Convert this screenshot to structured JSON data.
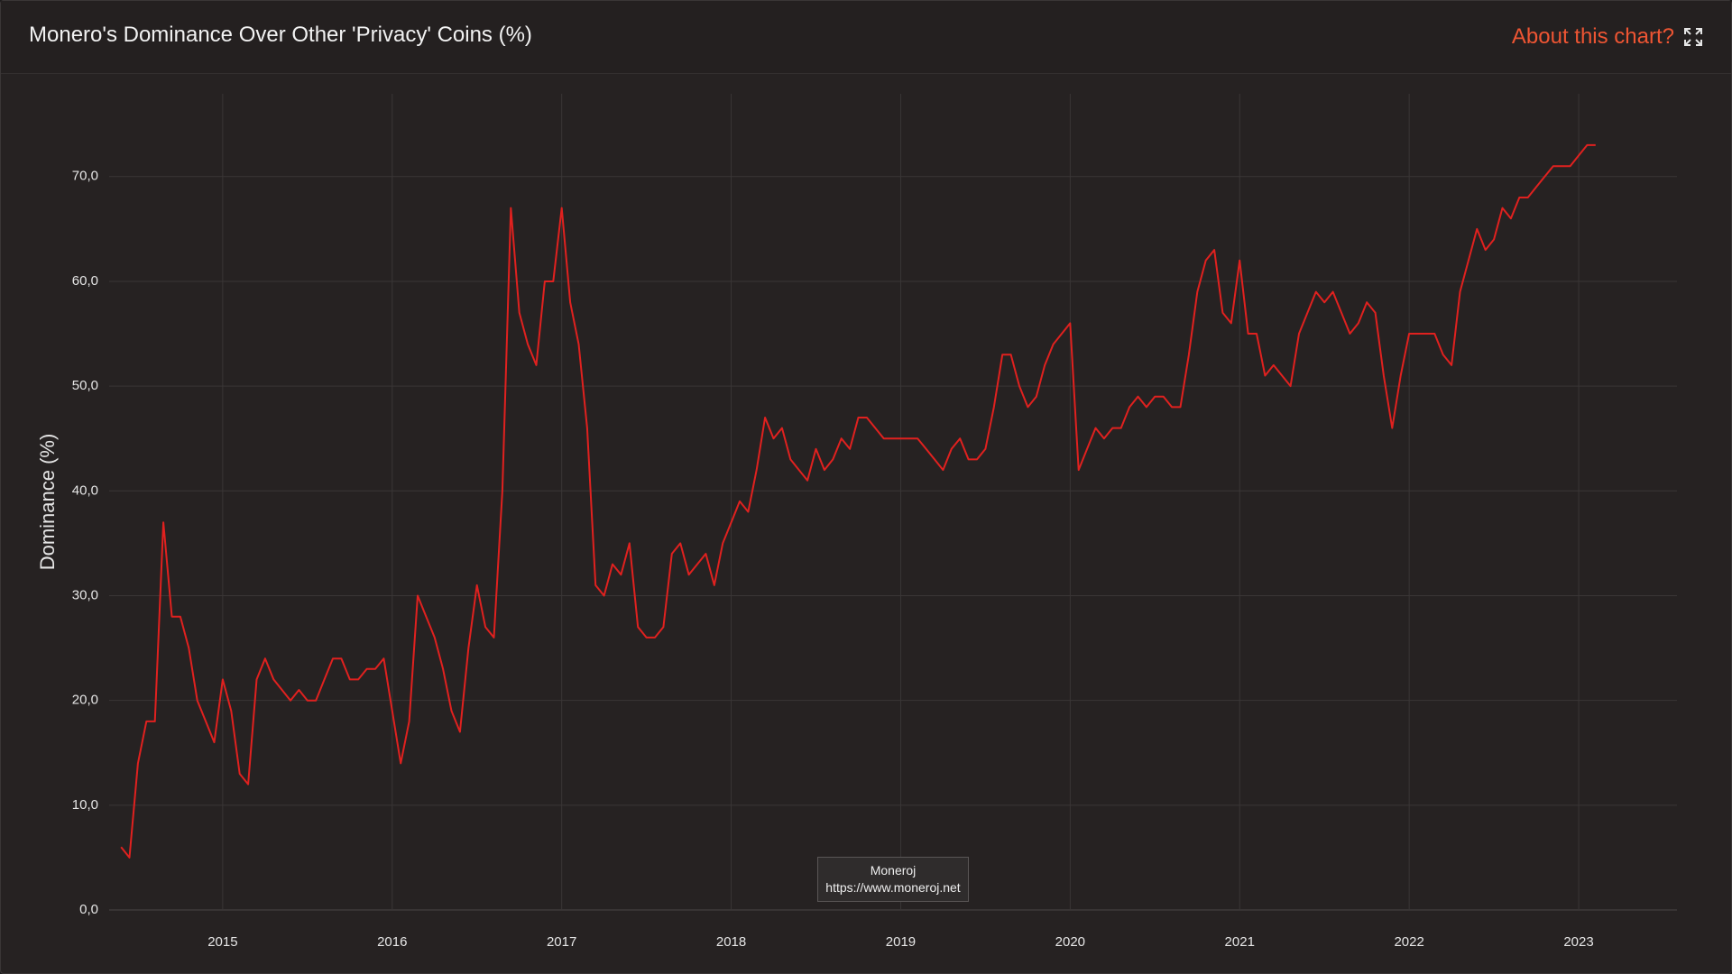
{
  "about": "About this chart?",
  "watermark": {
    "name": "Moneroj",
    "url": "https://www.moneroj.net"
  },
  "chart_data": {
    "type": "line",
    "title": "Monero's Dominance Over Other 'Privacy' Coins (%)",
    "y_label": "Dominance (%)",
    "color": "#e0211f",
    "grid": true,
    "xlim": [
      2014.33,
      2023.58
    ],
    "ylim": [
      0,
      77.9
    ],
    "xticks": [
      2015,
      2016,
      2017,
      2018,
      2019,
      2020,
      2021,
      2022,
      2023
    ],
    "yticks": [
      {
        "value": 0,
        "label": "0,0"
      },
      {
        "value": 10,
        "label": "10,0"
      },
      {
        "value": 20,
        "label": "20,0"
      },
      {
        "value": 30,
        "label": "30,0"
      },
      {
        "value": 40,
        "label": "40,0"
      },
      {
        "value": 50,
        "label": "50,0"
      },
      {
        "value": 60,
        "label": "60,0"
      },
      {
        "value": 70,
        "label": "70,0"
      }
    ],
    "x": [
      2014.4,
      2014.45,
      2014.5,
      2014.55,
      2014.6,
      2014.65,
      2014.7,
      2014.75,
      2014.8,
      2014.85,
      2014.9,
      2014.95,
      2015,
      2015.05,
      2015.1,
      2015.15,
      2015.2,
      2015.25,
      2015.3,
      2015.35,
      2015.4,
      2015.45,
      2015.5,
      2015.55,
      2015.6,
      2015.65,
      2015.7,
      2015.75,
      2015.8,
      2015.85,
      2015.9,
      2015.95,
      2016,
      2016.05,
      2016.1,
      2016.15,
      2016.2,
      2016.25,
      2016.3,
      2016.35,
      2016.4,
      2016.45,
      2016.5,
      2016.55,
      2016.6,
      2016.65,
      2016.7,
      2016.75,
      2016.8,
      2016.85,
      2016.9,
      2016.95,
      2017,
      2017.05,
      2017.1,
      2017.15,
      2017.2,
      2017.25,
      2017.3,
      2017.35,
      2017.4,
      2017.45,
      2017.5,
      2017.55,
      2017.6,
      2017.65,
      2017.7,
      2017.75,
      2017.8,
      2017.85,
      2017.9,
      2017.95,
      2018,
      2018.05,
      2018.1,
      2018.15,
      2018.2,
      2018.25,
      2018.3,
      2018.35,
      2018.4,
      2018.45,
      2018.5,
      2018.55,
      2018.6,
      2018.65,
      2018.7,
      2018.75,
      2018.8,
      2018.85,
      2018.9,
      2018.95,
      2019,
      2019.05,
      2019.1,
      2019.15,
      2019.2,
      2019.25,
      2019.3,
      2019.35,
      2019.4,
      2019.45,
      2019.5,
      2019.55,
      2019.6,
      2019.65,
      2019.7,
      2019.75,
      2019.8,
      2019.85,
      2019.9,
      2019.95,
      2020,
      2020.05,
      2020.1,
      2020.15,
      2020.2,
      2020.25,
      2020.3,
      2020.35,
      2020.4,
      2020.45,
      2020.5,
      2020.55,
      2020.6,
      2020.65,
      2020.7,
      2020.75,
      2020.8,
      2020.85,
      2020.9,
      2020.95,
      2021,
      2021.05,
      2021.1,
      2021.15,
      2021.2,
      2021.25,
      2021.3,
      2021.35,
      2021.4,
      2021.45,
      2021.5,
      2021.55,
      2021.6,
      2021.65,
      2021.7,
      2021.75,
      2021.8,
      2021.85,
      2021.9,
      2021.95,
      2022,
      2022.05,
      2022.1,
      2022.15,
      2022.2,
      2022.25,
      2022.3,
      2022.35,
      2022.4,
      2022.45,
      2022.5,
      2022.55,
      2022.6,
      2022.65,
      2022.7,
      2022.75,
      2022.8,
      2022.85,
      2022.9,
      2022.95,
      2023,
      2023.05,
      2023.1
    ],
    "values": [
      6,
      5,
      14,
      18,
      18,
      37,
      28,
      28,
      25,
      20,
      18,
      16,
      22,
      19,
      13,
      12,
      22,
      24,
      22,
      21,
      20,
      21,
      20,
      20,
      22,
      24,
      24,
      22,
      22,
      23,
      23,
      24,
      19,
      14,
      18,
      30,
      28,
      26,
      23,
      19,
      17,
      25,
      31,
      27,
      26,
      40,
      67,
      57,
      54,
      52,
      60,
      60,
      67,
      58,
      54,
      46,
      31,
      30,
      33,
      32,
      35,
      27,
      26,
      26,
      27,
      34,
      35,
      32,
      33,
      34,
      31,
      35,
      37,
      39,
      38,
      42,
      47,
      45,
      46,
      43,
      42,
      41,
      44,
      42,
      43,
      45,
      44,
      47,
      47,
      46,
      45,
      45,
      45,
      45,
      45,
      44,
      43,
      42,
      44,
      45,
      43,
      43,
      44,
      48,
      53,
      53,
      50,
      48,
      49,
      52,
      54,
      55,
      56,
      42,
      44,
      46,
      45,
      46,
      46,
      48,
      49,
      48,
      49,
      49,
      48,
      48,
      53,
      59,
      62,
      63,
      57,
      56,
      62,
      55,
      55,
      51,
      52,
      51,
      50,
      55,
      57,
      59,
      58,
      59,
      57,
      55,
      56,
      58,
      57,
      51,
      46,
      51,
      55,
      55,
      55,
      55,
      53,
      52,
      59,
      62,
      65,
      63,
      64,
      67,
      66,
      68,
      68,
      69,
      70,
      71,
      71,
      71,
      72,
      73,
      73
    ]
  }
}
